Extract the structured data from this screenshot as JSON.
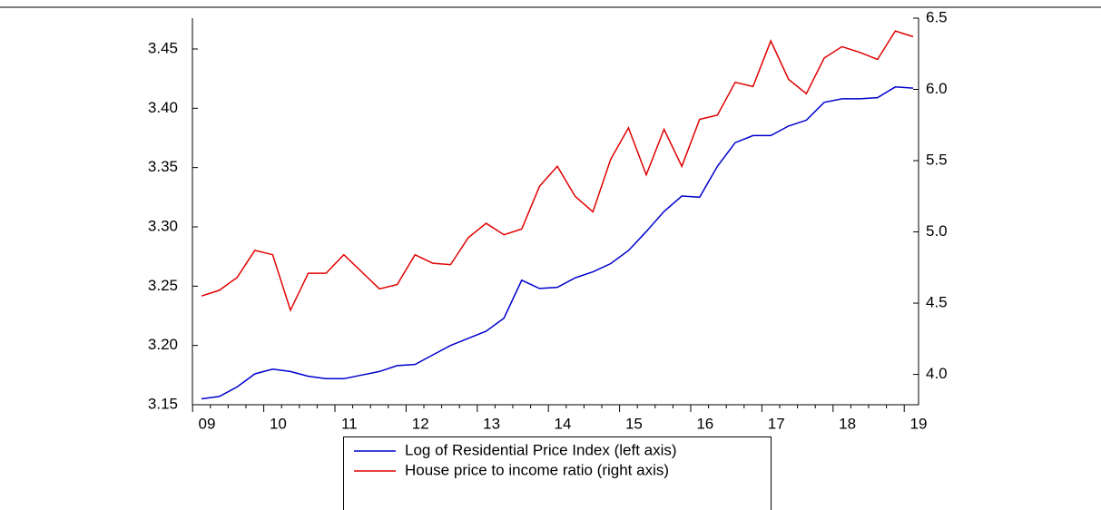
{
  "chart_data": {
    "type": "line",
    "categories": [
      "09",
      null,
      null,
      null,
      "10",
      null,
      null,
      null,
      "11",
      null,
      null,
      null,
      "12",
      null,
      null,
      null,
      "13",
      null,
      null,
      null,
      "14",
      null,
      null,
      null,
      "15",
      null,
      null,
      null,
      "16",
      null,
      null,
      null,
      "17",
      null,
      null,
      null,
      "18",
      null,
      null,
      null,
      "19"
    ],
    "series": [
      {
        "name": "Log of Residential Price Index (left axis)",
        "color": "#0000cc",
        "axis": "y",
        "values": [
          3.155,
          3.157,
          3.165,
          3.176,
          3.18,
          3.178,
          3.174,
          3.172,
          3.172,
          3.175,
          3.178,
          3.183,
          3.184,
          3.192,
          3.2,
          3.206,
          3.212,
          3.223,
          3.255,
          3.248,
          3.249,
          3.257,
          3.262,
          3.269,
          3.28,
          3.296,
          3.313,
          3.326,
          3.325,
          3.351,
          3.371,
          3.377,
          3.377,
          3.385,
          3.39,
          3.405,
          3.408,
          3.408,
          3.409,
          3.418,
          3.417
        ]
      },
      {
        "name": "House price to income ratio (right axis)",
        "color": "#e00000",
        "axis": "y2",
        "values": [
          4.55,
          4.59,
          4.68,
          4.87,
          4.84,
          4.45,
          4.71,
          4.71,
          4.84,
          4.72,
          4.6,
          4.63,
          4.84,
          4.78,
          4.77,
          4.96,
          5.06,
          4.98,
          5.02,
          5.32,
          5.46,
          5.25,
          5.14,
          5.51,
          5.73,
          5.4,
          5.72,
          5.46,
          5.79,
          5.82,
          6.05,
          6.02,
          6.34,
          6.07,
          5.97,
          6.22,
          6.3,
          6.26,
          6.21,
          6.41,
          6.37
        ]
      }
    ],
    "ylim": [
      3.15,
      3.476
    ],
    "yticks": [
      {
        "value": 3.15,
        "label": "3.15"
      },
      {
        "value": 3.2,
        "label": "3.20"
      },
      {
        "value": 3.25,
        "label": "3.25"
      },
      {
        "value": 3.3,
        "label": "3.30"
      },
      {
        "value": 3.35,
        "label": "3.35"
      },
      {
        "value": 3.4,
        "label": "3.40"
      },
      {
        "value": 3.45,
        "label": "3.45"
      }
    ],
    "y2lim": [
      3.787,
      6.5
    ],
    "y2ticks": [
      {
        "value": 4,
        "label": "4.0"
      },
      {
        "value": 4.5,
        "label": "4.5"
      },
      {
        "value": 5,
        "label": "5.0"
      },
      {
        "value": 5.5,
        "label": "5.5"
      },
      {
        "value": 6,
        "label": "6.0"
      },
      {
        "value": 6.5,
        "label": "6.5"
      }
    ],
    "grid": false
  }
}
